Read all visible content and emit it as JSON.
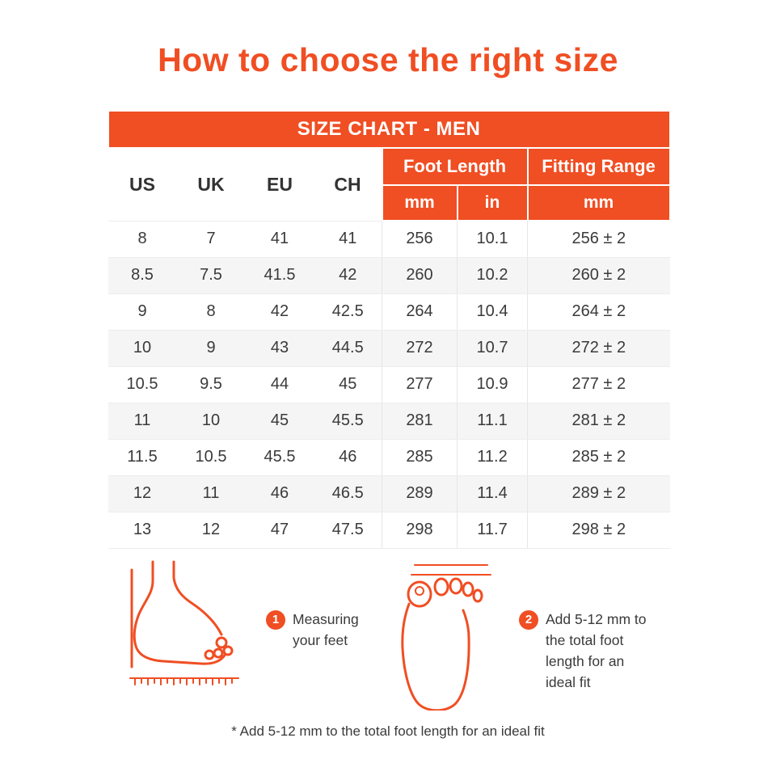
{
  "page": {
    "title": "How to choose the right size",
    "footnote": "* Add 5-12 mm to the total foot length for an ideal fit"
  },
  "colors": {
    "accent": "#F04E23",
    "row_stripe": "#F5F5F5",
    "text": "#3A3A3A"
  },
  "table": {
    "title": "SIZE CHART - MEN",
    "size_columns": [
      "US",
      "UK",
      "EU",
      "CH"
    ],
    "group_headers": {
      "foot_length": "Foot Length",
      "fitting_range": "Fitting Range"
    },
    "sub_headers": {
      "foot_length_mm": "mm",
      "foot_length_in": "in",
      "fitting_range_mm": "mm"
    },
    "rows": [
      [
        "8",
        "7",
        "41",
        "41",
        "256",
        "10.1",
        "256 ± 2"
      ],
      [
        "8.5",
        "7.5",
        "41.5",
        "42",
        "260",
        "10.2",
        "260 ± 2"
      ],
      [
        "9",
        "8",
        "42",
        "42.5",
        "264",
        "10.4",
        "264 ± 2"
      ],
      [
        "10",
        "9",
        "43",
        "44.5",
        "272",
        "10.7",
        "272 ± 2"
      ],
      [
        "10.5",
        "9.5",
        "44",
        "45",
        "277",
        "10.9",
        "277 ± 2"
      ],
      [
        "11",
        "10",
        "45",
        "45.5",
        "281",
        "11.1",
        "281 ± 2"
      ],
      [
        "11.5",
        "10.5",
        "45.5",
        "46",
        "285",
        "11.2",
        "285 ± 2"
      ],
      [
        "12",
        "11",
        "46",
        "46.5",
        "289",
        "11.4",
        "289 ± 2"
      ],
      [
        "13",
        "12",
        "47",
        "47.5",
        "298",
        "11.7",
        "298 ± 2"
      ]
    ]
  },
  "steps": [
    {
      "number": "1",
      "text": "Measuring your feet",
      "icon": "foot-side-measuring-illustration"
    },
    {
      "number": "2",
      "text": "Add 5-12 mm to the total foot length for an ideal fit",
      "icon": "foot-top-illustration"
    }
  ]
}
